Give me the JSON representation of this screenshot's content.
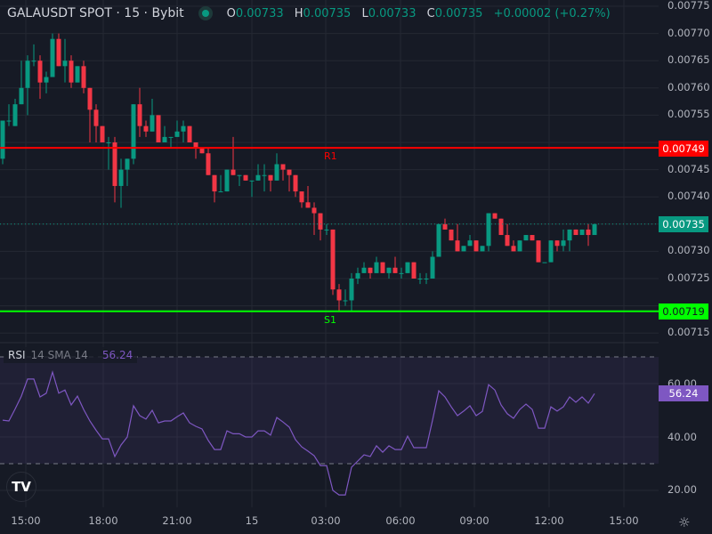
{
  "header": {
    "title": "GALAUSDT SPOT · 15 · Bybit",
    "status_icon": "market-open-dot",
    "ohlc": {
      "o_label": "O",
      "o": "0.00733",
      "h_label": "H",
      "h": "0.00735",
      "l_label": "L",
      "l": "0.00733",
      "c_label": "C",
      "c": "0.00735",
      "change": "+0.00002 (+0.27%)"
    }
  },
  "price_axis": {
    "labels": [
      "0.00775",
      "0.00770",
      "0.00765",
      "0.00760",
      "0.00755",
      "0.00745",
      "0.00740",
      "0.00730",
      "0.00725",
      "0.00715"
    ],
    "r1_badge": "0.00749",
    "last_badge": "0.00735",
    "s1_badge": "0.00719"
  },
  "levels": {
    "r1_label": "R1",
    "s1_label": "S1",
    "r1_color": "#ff0000",
    "s1_color": "#00ff00"
  },
  "rsi": {
    "name": "RSI",
    "params": "14 SMA 14",
    "value": "56.24",
    "axis": [
      "60.00",
      "40.00",
      "20.00"
    ],
    "color": "#7e57c2"
  },
  "time_axis": [
    "15:00",
    "18:00",
    "21:00",
    "15",
    "03:00",
    "06:00",
    "09:00",
    "12:00",
    "15:00"
  ],
  "colors": {
    "up": "#089981",
    "down": "#f23645",
    "background": "#161a25"
  },
  "chart_data": [
    {
      "type": "candlestick",
      "symbol": "GALAUSDT",
      "interval": "15",
      "ylim": [
        0.00715,
        0.00775
      ],
      "levels": {
        "R1": 0.00749,
        "S1": 0.00719
      },
      "last": 0.00735,
      "ohlc": [
        [
          0.00747,
          0.00754,
          0.00746,
          0.00754
        ],
        [
          0.00754,
          0.00757,
          0.00753,
          0.00754
        ],
        [
          0.00753,
          0.00758,
          0.00753,
          0.00757
        ],
        [
          0.00757,
          0.00765,
          0.00757,
          0.0076
        ],
        [
          0.0076,
          0.00766,
          0.00755,
          0.00765
        ],
        [
          0.00765,
          0.00768,
          0.00764,
          0.00765
        ],
        [
          0.00765,
          0.00766,
          0.00758,
          0.00761
        ],
        [
          0.00761,
          0.00763,
          0.00759,
          0.00762
        ],
        [
          0.00762,
          0.0077,
          0.00762,
          0.00769
        ],
        [
          0.00769,
          0.0077,
          0.00764,
          0.00764
        ],
        [
          0.00764,
          0.00769,
          0.00761,
          0.00765
        ],
        [
          0.00765,
          0.00766,
          0.0076,
          0.00761
        ],
        [
          0.00761,
          0.00764,
          0.00761,
          0.00764
        ],
        [
          0.00764,
          0.00765,
          0.00759,
          0.0076
        ],
        [
          0.0076,
          0.0076,
          0.0075,
          0.00756
        ],
        [
          0.00756,
          0.00757,
          0.0075,
          0.00753
        ],
        [
          0.00753,
          0.00753,
          0.0075,
          0.0075
        ],
        [
          0.0075,
          0.00751,
          0.00745,
          0.0075
        ],
        [
          0.0075,
          0.00751,
          0.00739,
          0.00742
        ],
        [
          0.00742,
          0.00747,
          0.00738,
          0.00745
        ],
        [
          0.00745,
          0.00747,
          0.00742,
          0.00747
        ],
        [
          0.00747,
          0.00757,
          0.00746,
          0.00757
        ],
        [
          0.00757,
          0.0076,
          0.00751,
          0.00753
        ],
        [
          0.00753,
          0.00754,
          0.00751,
          0.00752
        ],
        [
          0.00752,
          0.00758,
          0.00752,
          0.00755
        ],
        [
          0.00755,
          0.00755,
          0.0075,
          0.0075
        ],
        [
          0.0075,
          0.00753,
          0.0075,
          0.00751
        ],
        [
          0.00751,
          0.00751,
          0.00749,
          0.00751
        ],
        [
          0.00751,
          0.00754,
          0.00751,
          0.00752
        ],
        [
          0.00752,
          0.00754,
          0.0075,
          0.00753
        ],
        [
          0.00753,
          0.00753,
          0.0075,
          0.0075
        ],
        [
          0.0075,
          0.0075,
          0.00747,
          0.00749
        ],
        [
          0.00749,
          0.00749,
          0.00748,
          0.00748
        ],
        [
          0.00748,
          0.00749,
          0.00744,
          0.00744
        ],
        [
          0.00744,
          0.00744,
          0.00739,
          0.00741
        ],
        [
          0.00741,
          0.00744,
          0.00741,
          0.00741
        ],
        [
          0.00741,
          0.00745,
          0.00741,
          0.00745
        ],
        [
          0.00745,
          0.00751,
          0.00744,
          0.00744
        ],
        [
          0.00744,
          0.00744,
          0.00742,
          0.00744
        ],
        [
          0.00744,
          0.00744,
          0.00743,
          0.00743
        ],
        [
          0.00743,
          0.00743,
          0.0074,
          0.00743
        ],
        [
          0.00743,
          0.00746,
          0.00743,
          0.00744
        ],
        [
          0.00744,
          0.00746,
          0.00741,
          0.00744
        ],
        [
          0.00744,
          0.00744,
          0.00741,
          0.00743
        ],
        [
          0.00743,
          0.00748,
          0.00743,
          0.00746
        ],
        [
          0.00746,
          0.00746,
          0.00743,
          0.00745
        ],
        [
          0.00745,
          0.00745,
          0.00741,
          0.00744
        ],
        [
          0.00744,
          0.00744,
          0.0074,
          0.00741
        ],
        [
          0.00741,
          0.00741,
          0.00738,
          0.00739
        ],
        [
          0.00739,
          0.00742,
          0.00738,
          0.00738
        ],
        [
          0.00738,
          0.00739,
          0.00733,
          0.00737
        ],
        [
          0.00737,
          0.00737,
          0.00732,
          0.00734
        ],
        [
          0.00734,
          0.00735,
          0.00733,
          0.00734
        ],
        [
          0.00734,
          0.00734,
          0.00722,
          0.00723
        ],
        [
          0.00723,
          0.00724,
          0.00719,
          0.00721
        ],
        [
          0.00721,
          0.00723,
          0.0072,
          0.00721
        ],
        [
          0.00721,
          0.00726,
          0.00719,
          0.00725
        ],
        [
          0.00725,
          0.00727,
          0.00724,
          0.00726
        ],
        [
          0.00726,
          0.00728,
          0.00726,
          0.00727
        ],
        [
          0.00727,
          0.00727,
          0.00725,
          0.00726
        ],
        [
          0.00726,
          0.00729,
          0.00726,
          0.00728
        ],
        [
          0.00728,
          0.00728,
          0.00726,
          0.00726
        ],
        [
          0.00726,
          0.00727,
          0.00725,
          0.00727
        ],
        [
          0.00727,
          0.00729,
          0.00726,
          0.00726
        ],
        [
          0.00726,
          0.00727,
          0.00725,
          0.00726
        ],
        [
          0.00726,
          0.00728,
          0.00726,
          0.00728
        ],
        [
          0.00728,
          0.00728,
          0.00725,
          0.00725
        ],
        [
          0.00725,
          0.00726,
          0.00724,
          0.00725
        ],
        [
          0.00725,
          0.00726,
          0.00724,
          0.00725
        ],
        [
          0.00725,
          0.0073,
          0.00725,
          0.00729
        ],
        [
          0.00729,
          0.00735,
          0.00729,
          0.00735
        ],
        [
          0.00735,
          0.00736,
          0.00734,
          0.00734
        ],
        [
          0.00734,
          0.00734,
          0.00732,
          0.00732
        ],
        [
          0.00732,
          0.00735,
          0.0073,
          0.0073
        ],
        [
          0.0073,
          0.00731,
          0.0073,
          0.00731
        ],
        [
          0.00731,
          0.00733,
          0.00731,
          0.00732
        ],
        [
          0.00732,
          0.00732,
          0.0073,
          0.0073
        ],
        [
          0.0073,
          0.00731,
          0.0073,
          0.00731
        ],
        [
          0.00731,
          0.00737,
          0.0073,
          0.00737
        ],
        [
          0.00737,
          0.00737,
          0.00736,
          0.00736
        ],
        [
          0.00736,
          0.00736,
          0.00733,
          0.00733
        ],
        [
          0.00733,
          0.00735,
          0.00731,
          0.00731
        ],
        [
          0.00731,
          0.00732,
          0.0073,
          0.0073
        ],
        [
          0.0073,
          0.00732,
          0.0073,
          0.00732
        ],
        [
          0.00732,
          0.00733,
          0.00732,
          0.00733
        ],
        [
          0.00733,
          0.00733,
          0.00732,
          0.00732
        ],
        [
          0.00732,
          0.00732,
          0.00728,
          0.00728
        ],
        [
          0.00728,
          0.00728,
          0.00728,
          0.00728
        ],
        [
          0.00728,
          0.00732,
          0.00728,
          0.00732
        ],
        [
          0.00732,
          0.00732,
          0.0073,
          0.00731
        ],
        [
          0.00731,
          0.00734,
          0.0073,
          0.00732
        ],
        [
          0.00732,
          0.00734,
          0.0073,
          0.00734
        ],
        [
          0.00734,
          0.00734,
          0.00733,
          0.00733
        ],
        [
          0.00733,
          0.00734,
          0.00733,
          0.00734
        ],
        [
          0.00734,
          0.00735,
          0.00731,
          0.00733
        ],
        [
          0.00733,
          0.00735,
          0.00733,
          0.00735
        ]
      ]
    },
    {
      "type": "line",
      "name": "RSI 14",
      "ylim": [
        15,
        75
      ],
      "bands": [
        30,
        70
      ],
      "values": [
        46.3,
        46,
        50.5,
        55.3,
        61.7,
        61.7,
        55,
        56.4,
        64.3,
        56.4,
        57.6,
        52,
        55.3,
        50.3,
        46,
        42.5,
        39.3,
        39.3,
        32.7,
        37,
        40,
        51.7,
        48,
        46.7,
        50,
        45.3,
        46,
        46,
        47.6,
        49,
        45.3,
        44,
        43,
        38.7,
        35.3,
        35.3,
        42.3,
        41.2,
        41.2,
        40,
        40,
        42.3,
        42.3,
        40.7,
        47.3,
        45.6,
        43.7,
        39,
        36.3,
        34.7,
        33,
        29.3,
        29.3,
        20,
        18.3,
        18.3,
        28.7,
        31,
        33.3,
        32.7,
        36.7,
        34.3,
        36.7,
        35.3,
        35.3,
        40.3,
        36,
        36,
        36,
        46.3,
        57.3,
        55,
        51.3,
        48,
        49.7,
        51.7,
        48,
        49.6,
        59.6,
        57.6,
        52,
        48.7,
        47,
        50.3,
        52.3,
        50.3,
        43.3,
        43.3,
        51.3,
        49.7,
        51.3,
        55,
        53,
        55,
        52.7,
        56.24
      ]
    }
  ]
}
